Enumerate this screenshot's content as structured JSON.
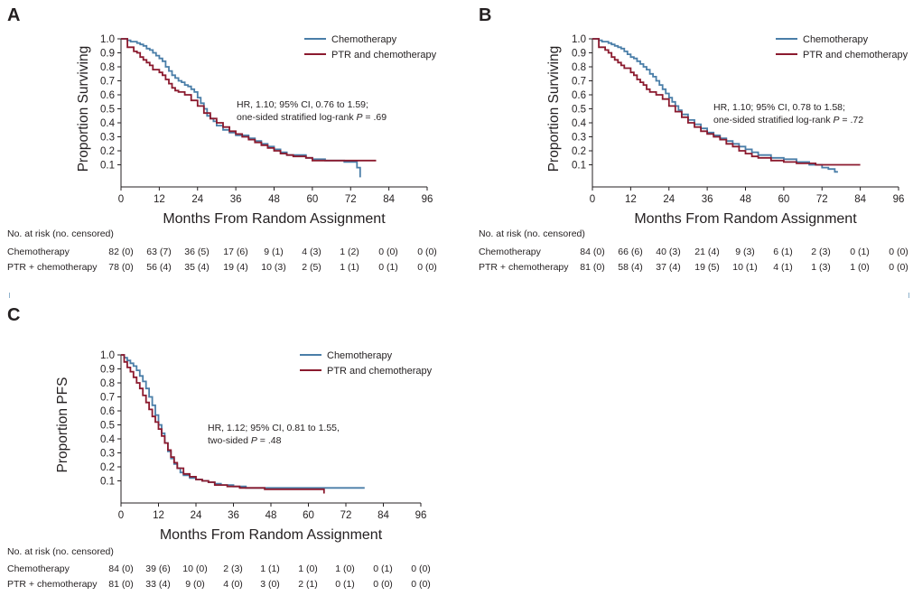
{
  "colors": {
    "chemo": "#4a7ea8",
    "ptr": "#8b1a2e",
    "text": "#231f20"
  },
  "chart_data": [
    {
      "panel": "A",
      "type": "line",
      "ylabel": "Proportion Surviving",
      "xlabel": "Months From Random Assignment",
      "xticks": [
        0,
        12,
        24,
        36,
        48,
        60,
        72,
        84,
        96
      ],
      "yticks": [
        0.1,
        0.2,
        0.3,
        0.4,
        0.5,
        0.6,
        0.7,
        0.8,
        0.9,
        1.0
      ],
      "ytick_labels": [
        "0.1",
        "0.2",
        "0.3",
        "0.4",
        "0.5",
        "0.6",
        "0.7",
        "0.8",
        "0.9",
        "1.0"
      ],
      "xlim": [
        0,
        96
      ],
      "ylim": [
        0,
        1.0
      ],
      "legend": [
        "Chemotherapy",
        "PTR and chemotherapy"
      ],
      "legend_position": "top-right",
      "annotation": [
        "HR, 1.10; 95% CI, 0.76 to 1.59;",
        "one-sided stratified log-rank ",
        "P",
        " = .69"
      ],
      "series": [
        {
          "name": "Chemotherapy",
          "color_key": "chemo",
          "x": [
            0,
            2,
            3,
            5,
            6,
            7,
            8,
            9,
            10,
            11,
            12,
            13,
            14,
            15,
            16,
            17,
            18,
            19,
            20,
            21,
            22,
            23,
            24,
            25,
            26,
            27,
            28,
            29,
            30,
            32,
            34,
            36,
            38,
            40,
            42,
            44,
            46,
            48,
            50,
            52,
            55,
            58,
            60,
            64,
            68,
            70,
            72,
            74,
            75,
            75
          ],
          "y": [
            1.0,
            0.99,
            0.98,
            0.97,
            0.96,
            0.95,
            0.93,
            0.92,
            0.9,
            0.88,
            0.86,
            0.84,
            0.8,
            0.77,
            0.74,
            0.72,
            0.7,
            0.69,
            0.67,
            0.66,
            0.64,
            0.62,
            0.58,
            0.54,
            0.5,
            0.45,
            0.43,
            0.41,
            0.38,
            0.35,
            0.33,
            0.31,
            0.31,
            0.29,
            0.27,
            0.25,
            0.23,
            0.21,
            0.19,
            0.17,
            0.17,
            0.15,
            0.14,
            0.13,
            0.13,
            0.12,
            0.12,
            0.08,
            0.08,
            0.01
          ]
        },
        {
          "name": "PTR and chemotherapy",
          "color_key": "ptr",
          "x": [
            0,
            2,
            4,
            5,
            6,
            7,
            8,
            9,
            10,
            12,
            13,
            14,
            15,
            16,
            17,
            18,
            20,
            22,
            24,
            26,
            28,
            30,
            32,
            34,
            36,
            38,
            40,
            42,
            44,
            46,
            48,
            50,
            52,
            54,
            58,
            60,
            64,
            70,
            75,
            80
          ],
          "y": [
            1.0,
            0.94,
            0.91,
            0.9,
            0.87,
            0.85,
            0.83,
            0.81,
            0.78,
            0.76,
            0.74,
            0.71,
            0.68,
            0.65,
            0.63,
            0.62,
            0.6,
            0.56,
            0.52,
            0.47,
            0.43,
            0.4,
            0.37,
            0.34,
            0.32,
            0.3,
            0.28,
            0.26,
            0.24,
            0.22,
            0.2,
            0.18,
            0.17,
            0.16,
            0.15,
            0.13,
            0.13,
            0.13,
            0.13,
            0.13
          ]
        }
      ],
      "risk_table": {
        "header": "No. at risk (no. censored)",
        "rows": [
          {
            "label": "Chemotherapy",
            "values": [
              "82 (0)",
              "63 (7)",
              "36 (5)",
              "17 (6)",
              "9 (1)",
              "4 (3)",
              "1 (2)",
              "0 (0)",
              "0 (0)"
            ]
          },
          {
            "label": "PTR  + chemotherapy",
            "values": [
              "78 (0)",
              "56 (4)",
              "35 (4)",
              "19 (4)",
              "10 (3)",
              "2 (5)",
              "1 (1)",
              "0 (1)",
              "0 (0)"
            ]
          }
        ]
      }
    },
    {
      "panel": "B",
      "type": "line",
      "ylabel": "Proportion Surviving",
      "xlabel": "Months From Random Assignment",
      "xticks": [
        0,
        12,
        24,
        36,
        48,
        60,
        72,
        84,
        96
      ],
      "yticks": [
        0.1,
        0.2,
        0.3,
        0.4,
        0.5,
        0.6,
        0.7,
        0.8,
        0.9,
        1.0
      ],
      "ytick_labels": [
        "0.1",
        "0.2",
        "0.3",
        "0.4",
        "0.5",
        "0.6",
        "0.7",
        "0.8",
        "0.9",
        "1.0"
      ],
      "xlim": [
        0,
        96
      ],
      "ylim": [
        0,
        1.0
      ],
      "legend": [
        "Chemotherapy",
        "PTR and chemotherapy"
      ],
      "legend_position": "top-right",
      "annotation": [
        "HR, 1.10; 95% CI, 0.78 to 1.58;",
        "one-sided stratified log-rank ",
        "P",
        " = .72"
      ],
      "series": [
        {
          "name": "Chemotherapy",
          "color_key": "chemo",
          "x": [
            0,
            2,
            3,
            5,
            6,
            7,
            8,
            9,
            10,
            11,
            12,
            13,
            14,
            15,
            16,
            17,
            18,
            19,
            20,
            21,
            22,
            23,
            24,
            25,
            26,
            27,
            28,
            30,
            32,
            34,
            36,
            38,
            40,
            42,
            44,
            46,
            48,
            50,
            52,
            56,
            60,
            64,
            68,
            72,
            74,
            76,
            77
          ],
          "y": [
            1.0,
            0.99,
            0.98,
            0.97,
            0.96,
            0.95,
            0.94,
            0.93,
            0.91,
            0.89,
            0.87,
            0.86,
            0.84,
            0.82,
            0.8,
            0.78,
            0.75,
            0.73,
            0.7,
            0.67,
            0.64,
            0.61,
            0.58,
            0.55,
            0.52,
            0.49,
            0.46,
            0.42,
            0.39,
            0.36,
            0.33,
            0.31,
            0.29,
            0.27,
            0.25,
            0.23,
            0.21,
            0.19,
            0.17,
            0.15,
            0.14,
            0.12,
            0.1,
            0.08,
            0.07,
            0.05,
            0.05
          ]
        },
        {
          "name": "PTR and chemotherapy",
          "color_key": "ptr",
          "x": [
            0,
            2,
            4,
            5,
            6,
            7,
            8,
            9,
            10,
            12,
            13,
            14,
            15,
            16,
            17,
            18,
            20,
            22,
            24,
            26,
            28,
            30,
            32,
            34,
            36,
            38,
            40,
            42,
            44,
            46,
            48,
            50,
            52,
            56,
            60,
            64,
            70,
            76,
            84
          ],
          "y": [
            1.0,
            0.94,
            0.92,
            0.9,
            0.87,
            0.85,
            0.83,
            0.81,
            0.79,
            0.76,
            0.74,
            0.71,
            0.69,
            0.67,
            0.64,
            0.62,
            0.6,
            0.57,
            0.52,
            0.48,
            0.44,
            0.4,
            0.37,
            0.34,
            0.32,
            0.3,
            0.28,
            0.25,
            0.23,
            0.2,
            0.18,
            0.16,
            0.15,
            0.13,
            0.12,
            0.11,
            0.1,
            0.1,
            0.1
          ]
        }
      ],
      "risk_table": {
        "header": "No. at risk (no. censored)",
        "rows": [
          {
            "label": "Chemotherapy",
            "values": [
              "84 (0)",
              "66 (6)",
              "40 (3)",
              "21 (4)",
              "9 (3)",
              "6 (1)",
              "2 (3)",
              "0 (1)",
              "0 (0)"
            ]
          },
          {
            "label": "PTR  + chemotherapy",
            "values": [
              "81 (0)",
              "58 (4)",
              "37 (4)",
              "19 (5)",
              "10 (1)",
              "4 (1)",
              "1 (3)",
              "1 (0)",
              "0 (0)"
            ]
          }
        ]
      }
    },
    {
      "panel": "C",
      "type": "line",
      "ylabel": "Proportion PFS",
      "xlabel": "Months From Random Assignment",
      "xticks": [
        0,
        12,
        24,
        36,
        48,
        60,
        72,
        84,
        96
      ],
      "yticks": [
        0.1,
        0.2,
        0.3,
        0.4,
        0.5,
        0.6,
        0.7,
        0.8,
        0.9,
        1.0
      ],
      "ytick_labels": [
        "0.1",
        "0.2",
        "0.3",
        "0.4",
        "0.5",
        "0.6",
        "0.7",
        "0.8",
        "0.9",
        "1.0"
      ],
      "xlim": [
        0,
        96
      ],
      "ylim": [
        0,
        1.0
      ],
      "legend": [
        "Chemotherapy",
        "PTR and chemotherapy"
      ],
      "legend_position": "top-right",
      "annotation": [
        "HR, 1.12; 95% CI, 0.81 to 1.55,",
        "two-sided ",
        "P",
        " = .48"
      ],
      "series": [
        {
          "name": "Chemotherapy",
          "color_key": "chemo",
          "x": [
            0,
            1,
            2,
            3,
            4,
            5,
            6,
            7,
            8,
            9,
            10,
            11,
            12,
            13,
            14,
            15,
            16,
            17,
            18,
            19,
            20,
            22,
            24,
            26,
            28,
            30,
            32,
            34,
            36,
            40,
            44,
            48,
            52,
            56,
            60,
            64,
            68,
            72,
            78
          ],
          "y": [
            1.0,
            0.98,
            0.96,
            0.94,
            0.92,
            0.89,
            0.85,
            0.81,
            0.76,
            0.7,
            0.64,
            0.57,
            0.5,
            0.44,
            0.37,
            0.31,
            0.26,
            0.22,
            0.19,
            0.16,
            0.14,
            0.12,
            0.11,
            0.1,
            0.09,
            0.08,
            0.07,
            0.07,
            0.06,
            0.05,
            0.05,
            0.05,
            0.05,
            0.05,
            0.05,
            0.05,
            0.05,
            0.05,
            0.05
          ]
        },
        {
          "name": "PTR and chemotherapy",
          "color_key": "ptr",
          "x": [
            0,
            1,
            2,
            3,
            4,
            5,
            6,
            7,
            8,
            9,
            10,
            11,
            12,
            13,
            14,
            15,
            16,
            17,
            18,
            20,
            22,
            24,
            26,
            28,
            30,
            34,
            38,
            42,
            46,
            50,
            54,
            58,
            62,
            65,
            65
          ],
          "y": [
            1.0,
            0.95,
            0.91,
            0.88,
            0.84,
            0.8,
            0.76,
            0.71,
            0.66,
            0.61,
            0.56,
            0.52,
            0.47,
            0.42,
            0.37,
            0.32,
            0.27,
            0.23,
            0.19,
            0.15,
            0.13,
            0.11,
            0.1,
            0.09,
            0.07,
            0.06,
            0.05,
            0.05,
            0.04,
            0.04,
            0.04,
            0.04,
            0.04,
            0.04,
            0.01
          ]
        }
      ],
      "risk_table": {
        "header": "No. at risk (no. censored)",
        "rows": [
          {
            "label": "Chemotherapy",
            "values": [
              "84 (0)",
              "39 (6)",
              "10 (0)",
              "2 (3)",
              "1 (1)",
              "1 (0)",
              "1 (0)",
              "0 (1)",
              "0 (0)"
            ]
          },
          {
            "label": "PTR  + chemotherapy",
            "values": [
              "81 (0)",
              "33 (4)",
              "9 (0)",
              "4 (0)",
              "3 (0)",
              "2 (1)",
              "0 (1)",
              "0 (0)",
              "0 (0)"
            ]
          }
        ]
      }
    }
  ]
}
